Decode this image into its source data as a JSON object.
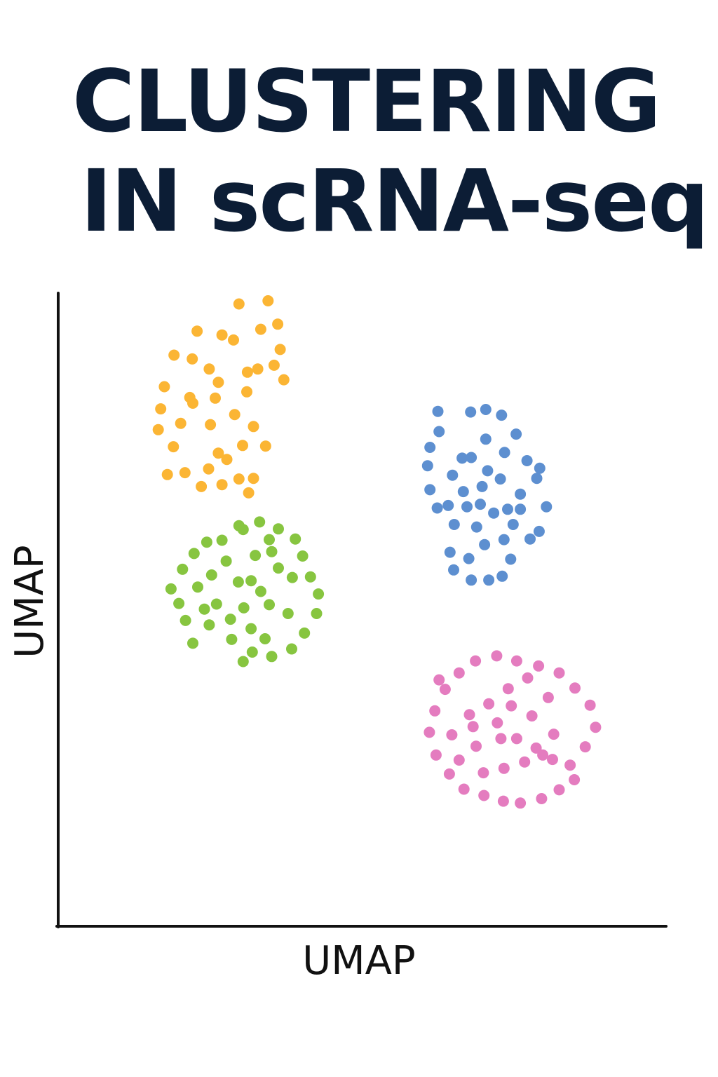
{
  "title_lines": [
    "CLUSTERING",
    "IN scRNA-seq"
  ],
  "chart_data": {
    "type": "scatter",
    "xlabel": "UMAP",
    "ylabel": "UMAP",
    "xlim": [
      0,
      100
    ],
    "ylim": [
      0,
      100
    ],
    "grid": false,
    "legend": "none",
    "series": [
      {
        "color": "#fbb534",
        "points": [
          [
            19.1,
            90.4
          ],
          [
            22.9,
            94.2
          ],
          [
            29.8,
            98.5
          ],
          [
            34.6,
            99.0
          ],
          [
            33.4,
            94.5
          ],
          [
            36.2,
            95.3
          ],
          [
            27.0,
            93.6
          ],
          [
            24.9,
            88.2
          ],
          [
            32.9,
            88.2
          ],
          [
            28.9,
            92.8
          ],
          [
            35.6,
            88.8
          ],
          [
            36.6,
            91.3
          ],
          [
            37.2,
            86.5
          ],
          [
            31.2,
            87.7
          ],
          [
            26.4,
            86.1
          ],
          [
            22.1,
            89.8
          ],
          [
            17.5,
            85.4
          ],
          [
            16.9,
            81.9
          ],
          [
            20.2,
            79.6
          ],
          [
            25.1,
            79.4
          ],
          [
            29.1,
            81.0
          ],
          [
            32.2,
            79.1
          ],
          [
            34.2,
            76.0
          ],
          [
            27.8,
            73.9
          ],
          [
            24.8,
            72.4
          ],
          [
            20.9,
            71.8
          ],
          [
            18.0,
            71.5
          ],
          [
            19.0,
            75.9
          ],
          [
            16.5,
            78.6
          ],
          [
            21.7,
            83.7
          ],
          [
            25.9,
            83.6
          ],
          [
            22.2,
            82.8
          ],
          [
            31.1,
            84.6
          ],
          [
            30.4,
            76.1
          ],
          [
            27.0,
            69.9
          ],
          [
            29.8,
            70.8
          ],
          [
            32.2,
            70.9
          ],
          [
            23.6,
            69.6
          ],
          [
            26.4,
            74.9
          ],
          [
            31.4,
            68.6
          ]
        ]
      },
      {
        "color": "#5d8fd0",
        "points": [
          [
            68.0,
            81.4
          ],
          [
            70.5,
            81.8
          ],
          [
            73.1,
            80.9
          ],
          [
            75.5,
            77.9
          ],
          [
            77.3,
            73.7
          ],
          [
            78.9,
            70.9
          ],
          [
            80.5,
            66.4
          ],
          [
            79.3,
            62.5
          ],
          [
            77.8,
            61.3
          ],
          [
            75.0,
            63.6
          ],
          [
            74.6,
            58.1
          ],
          [
            73.2,
            55.4
          ],
          [
            71.0,
            54.8
          ],
          [
            68.1,
            54.8
          ],
          [
            65.2,
            56.4
          ],
          [
            64.6,
            59.2
          ],
          [
            65.3,
            63.6
          ],
          [
            64.3,
            66.6
          ],
          [
            65.0,
            71.4
          ],
          [
            66.6,
            74.1
          ],
          [
            68.1,
            74.2
          ],
          [
            70.5,
            77.1
          ],
          [
            70.8,
            72.1
          ],
          [
            72.9,
            70.8
          ],
          [
            73.6,
            75.0
          ],
          [
            76.2,
            68.4
          ],
          [
            74.1,
            66.0
          ],
          [
            71.8,
            65.4
          ],
          [
            69.0,
            63.2
          ],
          [
            69.6,
            66.8
          ],
          [
            66.8,
            68.8
          ],
          [
            67.4,
            66.4
          ],
          [
            62.5,
            66.2
          ],
          [
            61.3,
            69.1
          ],
          [
            60.9,
            72.9
          ],
          [
            61.3,
            75.8
          ],
          [
            62.8,
            78.3
          ],
          [
            62.6,
            81.5
          ],
          [
            79.4,
            72.5
          ],
          [
            76.2,
            66.0
          ],
          [
            73.5,
            61.2
          ],
          [
            70.3,
            60.4
          ],
          [
            67.7,
            58.2
          ],
          [
            69.9,
            69.6
          ]
        ]
      },
      {
        "color": "#87c540",
        "points": [
          [
            21.0,
            48.4
          ],
          [
            24.9,
            47.7
          ],
          [
            28.6,
            45.4
          ],
          [
            32.0,
            43.4
          ],
          [
            35.2,
            42.7
          ],
          [
            38.5,
            43.9
          ],
          [
            40.6,
            46.4
          ],
          [
            42.6,
            49.5
          ],
          [
            42.9,
            52.6
          ],
          [
            41.6,
            55.3
          ],
          [
            40.3,
            58.6
          ],
          [
            39.1,
            61.3
          ],
          [
            36.3,
            62.9
          ],
          [
            33.2,
            64.0
          ],
          [
            30.5,
            62.8
          ],
          [
            27.0,
            61.1
          ],
          [
            24.5,
            60.8
          ],
          [
            22.4,
            59.0
          ],
          [
            20.5,
            56.5
          ],
          [
            18.6,
            53.4
          ],
          [
            19.9,
            51.1
          ],
          [
            23.0,
            53.7
          ],
          [
            25.3,
            55.6
          ],
          [
            27.7,
            57.8
          ],
          [
            29.7,
            54.5
          ],
          [
            30.6,
            50.4
          ],
          [
            28.4,
            48.6
          ],
          [
            26.1,
            51.0
          ],
          [
            24.1,
            50.2
          ],
          [
            31.8,
            47.1
          ],
          [
            34.1,
            45.5
          ],
          [
            34.8,
            50.9
          ],
          [
            33.4,
            53.0
          ],
          [
            36.3,
            56.7
          ],
          [
            38.6,
            55.2
          ],
          [
            37.9,
            49.5
          ],
          [
            35.2,
            59.3
          ],
          [
            34.8,
            61.2
          ],
          [
            32.5,
            58.7
          ],
          [
            29.8,
            63.4
          ],
          [
            31.8,
            54.7
          ],
          [
            22.2,
            44.8
          ],
          [
            30.5,
            41.9
          ]
        ]
      },
      {
        "color": "#e47cbf",
        "points": [
          [
            68.4,
            31.6
          ],
          [
            72.4,
            32.2
          ],
          [
            75.6,
            29.7
          ],
          [
            78.8,
            28.2
          ],
          [
            81.5,
            26.4
          ],
          [
            84.4,
            25.5
          ],
          [
            86.9,
            28.4
          ],
          [
            88.6,
            31.5
          ],
          [
            87.7,
            35.0
          ],
          [
            85.2,
            37.7
          ],
          [
            82.6,
            40.1
          ],
          [
            79.2,
            41.2
          ],
          [
            75.6,
            42.0
          ],
          [
            72.3,
            42.8
          ],
          [
            68.8,
            42.0
          ],
          [
            66.1,
            40.1
          ],
          [
            63.8,
            37.5
          ],
          [
            62.1,
            34.1
          ],
          [
            61.2,
            30.7
          ],
          [
            62.3,
            27.1
          ],
          [
            64.5,
            24.1
          ],
          [
            66.9,
            21.7
          ],
          [
            70.2,
            20.7
          ],
          [
            73.4,
            19.8
          ],
          [
            76.2,
            19.5
          ],
          [
            79.7,
            20.2
          ],
          [
            82.6,
            21.6
          ],
          [
            85.1,
            23.2
          ],
          [
            81.7,
            30.4
          ],
          [
            78.1,
            33.3
          ],
          [
            74.7,
            34.9
          ],
          [
            71.0,
            35.2
          ],
          [
            67.8,
            33.5
          ],
          [
            64.9,
            30.3
          ],
          [
            66.1,
            26.3
          ],
          [
            70.1,
            24.3
          ],
          [
            73.5,
            25.0
          ],
          [
            76.9,
            26.0
          ],
          [
            79.9,
            27.1
          ],
          [
            73.0,
            29.7
          ],
          [
            68.9,
            28.5
          ],
          [
            74.2,
            37.6
          ],
          [
            77.4,
            39.3
          ],
          [
            80.8,
            36.2
          ],
          [
            62.8,
            39.0
          ]
        ]
      }
    ]
  }
}
